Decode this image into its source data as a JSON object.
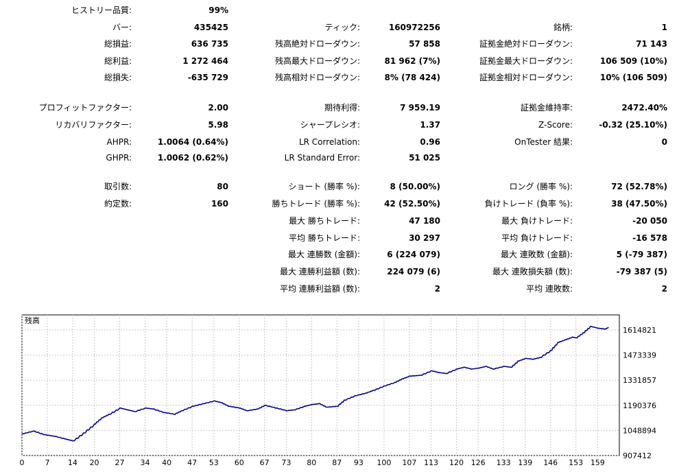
{
  "report": {
    "rows": [
      {
        "top": 8,
        "cells": [
          {
            "col": 0,
            "label": "ヒストリー品質:",
            "value": "99%"
          }
        ]
      },
      {
        "top": 33,
        "cells": [
          {
            "col": 0,
            "label": "バー:",
            "value": "435425"
          },
          {
            "col": 1,
            "label": "ティック:",
            "value": "160972256"
          },
          {
            "col": 2,
            "label": "銘柄:",
            "value": "1"
          }
        ]
      },
      {
        "top": 57,
        "cells": [
          {
            "col": 0,
            "label": "総損益:",
            "value": "636 735"
          },
          {
            "col": 1,
            "label": "残高絶対ドローダウン:",
            "value": "57 858"
          },
          {
            "col": 2,
            "label": "証拠金絶対ドローダウン:",
            "value": "71 143"
          }
        ]
      },
      {
        "top": 82,
        "cells": [
          {
            "col": 0,
            "label": "総利益:",
            "value": "1 272 464"
          },
          {
            "col": 1,
            "label": "残高最大ドローダウン:",
            "value": "81 962 (7%)"
          },
          {
            "col": 2,
            "label": "証拠金最大ドローダウン:",
            "value": "106 509 (10%)"
          }
        ]
      },
      {
        "top": 106,
        "cells": [
          {
            "col": 0,
            "label": "総損失:",
            "value": "-635 729"
          },
          {
            "col": 1,
            "label": "残高相対ドローダウン:",
            "value": "8% (78 424)"
          },
          {
            "col": 2,
            "label": "証拠金相対ドローダウン:",
            "value": "10% (106 509)"
          }
        ]
      },
      {
        "top": 150,
        "cells": [
          {
            "col": 0,
            "label": "プロフィットファクター:",
            "value": "2.00"
          },
          {
            "col": 1,
            "label": "期待利得:",
            "value": "7 959.19"
          },
          {
            "col": 2,
            "label": "証拠金維持率:",
            "value": "2472.40%"
          }
        ]
      },
      {
        "top": 175,
        "cells": [
          {
            "col": 0,
            "label": "リカバリファクター:",
            "value": "5.98"
          },
          {
            "col": 1,
            "label": "シャープレシオ:",
            "value": "1.37"
          },
          {
            "col": 2,
            "label": "Z-Score:",
            "value": "-0.32 (25.10%)"
          }
        ]
      },
      {
        "top": 200,
        "cells": [
          {
            "col": 0,
            "label": "AHPR:",
            "value": "1.0064 (0.64%)"
          },
          {
            "col": 1,
            "label": "LR Correlation:",
            "value": "0.96"
          },
          {
            "col": 2,
            "label": "OnTester 結果:",
            "value": "0"
          }
        ]
      },
      {
        "top": 223,
        "cells": [
          {
            "col": 0,
            "label": "GHPR:",
            "value": "1.0062 (0.62%)"
          },
          {
            "col": 1,
            "label": "LR Standard Error:",
            "value": "51 025"
          }
        ]
      },
      {
        "top": 265,
        "cells": [
          {
            "col": 0,
            "label": "取引数:",
            "value": "80"
          },
          {
            "col": 1,
            "label": "ショート (勝率 %):",
            "value": "8 (50.00%)"
          },
          {
            "col": 2,
            "label": "ロング (勝率 %):",
            "value": "72 (52.78%)"
          }
        ]
      },
      {
        "top": 290,
        "cells": [
          {
            "col": 0,
            "label": "約定数:",
            "value": "160"
          },
          {
            "col": 1,
            "label": "勝ちトレード (勝率 %):",
            "value": "42 (52.50%)"
          },
          {
            "col": 2,
            "label": "負けトレード (負率 %):",
            "value": "38 (47.50%)"
          }
        ]
      },
      {
        "top": 315,
        "cells": [
          {
            "col": 1,
            "label": "最大 勝ちトレード:",
            "value": "47 180"
          },
          {
            "col": 2,
            "label": "最大 負けトレード:",
            "value": "-20 050"
          }
        ]
      },
      {
        "top": 340,
        "cells": [
          {
            "col": 1,
            "label": "平均 勝ちトレード:",
            "value": "30 297"
          },
          {
            "col": 2,
            "label": "平均 負けトレード:",
            "value": "-16 578"
          }
        ]
      },
      {
        "top": 364,
        "cells": [
          {
            "col": 1,
            "label": "最大 連勝数 (金額):",
            "value": "6 (224 079)"
          },
          {
            "col": 2,
            "label": "最大 連敗数 (金額):",
            "value": "5 (-79 387)"
          }
        ]
      },
      {
        "top": 389,
        "cells": [
          {
            "col": 1,
            "label": "最大 連勝利益額 (数):",
            "value": "224 079 (6)"
          },
          {
            "col": 2,
            "label": "最大 連敗損失額 (数):",
            "value": "-79 387 (5)"
          }
        ]
      },
      {
        "top": 414,
        "cells": [
          {
            "col": 1,
            "label": "平均 連勝利益額 (数):",
            "value": "2"
          },
          {
            "col": 2,
            "label": "平均 連敗数:",
            "value": "2"
          }
        ]
      }
    ]
  },
  "chart_data": {
    "type": "line",
    "title": "残高",
    "series": [
      {
        "name": "",
        "color": "#00009c"
      }
    ],
    "x_ticks": [
      0,
      7,
      14,
      20,
      27,
      34,
      40,
      47,
      53,
      60,
      67,
      73,
      80,
      87,
      93,
      100,
      107,
      113,
      120,
      126,
      133,
      139,
      146,
      153,
      159
    ],
    "y_ticks": [
      "907412",
      "1048894",
      "1190376",
      "1331857",
      "1473339",
      "1614821"
    ],
    "y_tick_values": [
      907412,
      1048894,
      1190376,
      1331857,
      1473339,
      1614821
    ],
    "xlim": [
      0,
      165
    ],
    "ylim": [
      907412,
      1700000
    ],
    "grid": true,
    "points": [
      [
        0,
        1030000
      ],
      [
        3,
        1045000
      ],
      [
        6,
        1025000
      ],
      [
        9,
        1015000
      ],
      [
        12,
        1000000
      ],
      [
        14,
        990000
      ],
      [
        17,
        1035000
      ],
      [
        20,
        1085000
      ],
      [
        22,
        1120000
      ],
      [
        24,
        1140000
      ],
      [
        27,
        1175000
      ],
      [
        29,
        1165000
      ],
      [
        31,
        1155000
      ],
      [
        34,
        1175000
      ],
      [
        36,
        1170000
      ],
      [
        39,
        1150000
      ],
      [
        42,
        1140000
      ],
      [
        44,
        1160000
      ],
      [
        47,
        1185000
      ],
      [
        50,
        1200000
      ],
      [
        53,
        1215000
      ],
      [
        55,
        1205000
      ],
      [
        57,
        1185000
      ],
      [
        60,
        1175000
      ],
      [
        62,
        1160000
      ],
      [
        65,
        1170000
      ],
      [
        67,
        1190000
      ],
      [
        70,
        1175000
      ],
      [
        73,
        1160000
      ],
      [
        75,
        1165000
      ],
      [
        78,
        1185000
      ],
      [
        80,
        1195000
      ],
      [
        82,
        1200000
      ],
      [
        84,
        1180000
      ],
      [
        87,
        1185000
      ],
      [
        89,
        1220000
      ],
      [
        92,
        1245000
      ],
      [
        95,
        1260000
      ],
      [
        97,
        1275000
      ],
      [
        100,
        1300000
      ],
      [
        103,
        1320000
      ],
      [
        105,
        1340000
      ],
      [
        107,
        1355000
      ],
      [
        110,
        1360000
      ],
      [
        113,
        1385000
      ],
      [
        115,
        1375000
      ],
      [
        117,
        1370000
      ],
      [
        120,
        1395000
      ],
      [
        122,
        1405000
      ],
      [
        124,
        1395000
      ],
      [
        126,
        1400000
      ],
      [
        128,
        1410000
      ],
      [
        130,
        1395000
      ],
      [
        133,
        1410000
      ],
      [
        135,
        1405000
      ],
      [
        137,
        1440000
      ],
      [
        139,
        1455000
      ],
      [
        141,
        1450000
      ],
      [
        143,
        1460000
      ],
      [
        146,
        1500000
      ],
      [
        148,
        1545000
      ],
      [
        150,
        1560000
      ],
      [
        152,
        1575000
      ],
      [
        153,
        1570000
      ],
      [
        155,
        1600000
      ],
      [
        157,
        1635000
      ],
      [
        159,
        1625000
      ],
      [
        161,
        1620000
      ],
      [
        162,
        1630000
      ]
    ]
  }
}
